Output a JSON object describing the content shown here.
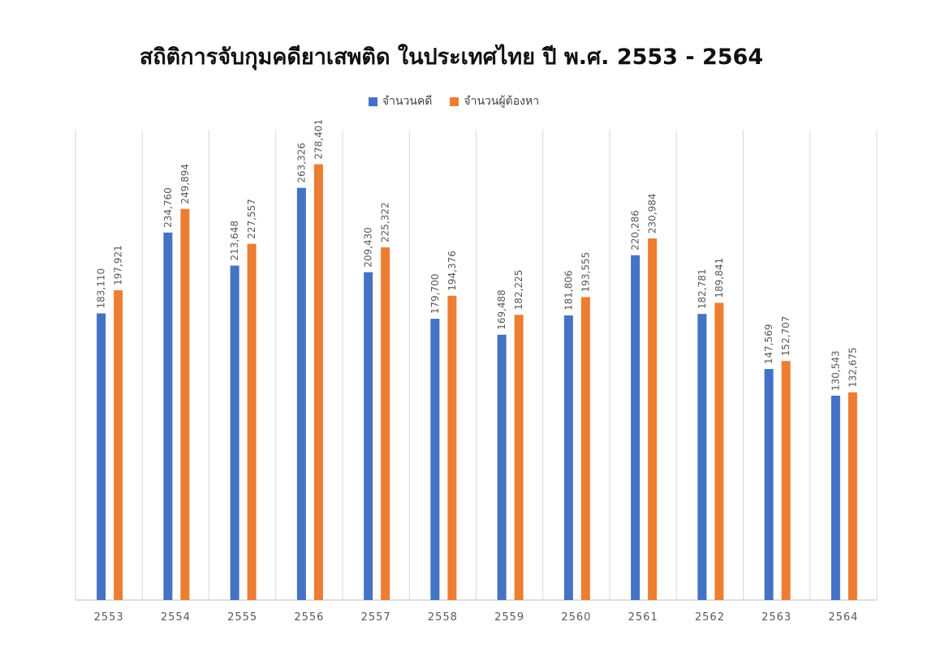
{
  "chart_data": {
    "type": "bar",
    "title": "สถิติการจับกุมคดียาเสพติด ในประเทศไทย ปี พ.ศ. 2553 - 2564",
    "xlabel": "",
    "ylabel": "",
    "categories": [
      "2553",
      "2554",
      "2555",
      "2556",
      "2557",
      "2558",
      "2559",
      "2560",
      "2561",
      "2562",
      "2563",
      "2564"
    ],
    "series": [
      {
        "name": "จำนวนคดี",
        "color": "#4472C4",
        "values": [
          183110,
          234760,
          213648,
          263326,
          209430,
          179700,
          169488,
          181806,
          220286,
          182781,
          147569,
          130543
        ],
        "labels": [
          "183,110",
          "234,760",
          "213,648",
          "263,326",
          "209,430",
          "179,700",
          "169,488",
          "181,806",
          "220,286",
          "182,781",
          "147,569",
          "130,543"
        ]
      },
      {
        "name": "จำนวนผู้ต้องหา",
        "color": "#ED7D31",
        "values": [
          197921,
          249894,
          227557,
          278401,
          225322,
          194376,
          182225,
          193555,
          230984,
          189841,
          152707,
          132675
        ],
        "labels": [
          "197,921",
          "249,894",
          "227,557",
          "278,401",
          "225,322",
          "194,376",
          "182,225",
          "193,555",
          "230,984",
          "189,841",
          "152,707",
          "132,675"
        ]
      }
    ],
    "ylim": [
      0,
      300000
    ],
    "grid": "vertical",
    "legend_position": "top"
  }
}
